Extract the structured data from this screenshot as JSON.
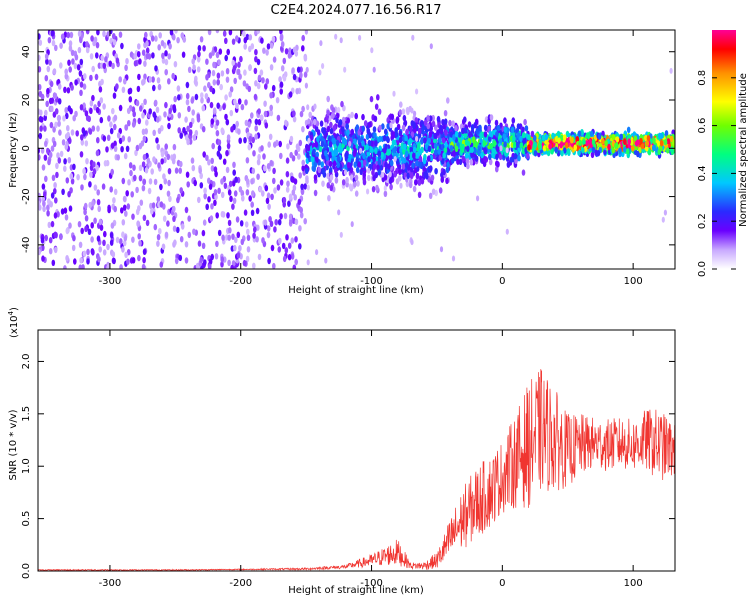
{
  "title": "C2E4.2024.077.16.56.R17",
  "colors": {
    "snr_line": "#f03530",
    "colormap": [
      "#ffffff",
      "#dcc6ff",
      "#9a4cff",
      "#6a00ff",
      "#2222ff",
      "#00bfff",
      "#00ff7f",
      "#7fff00",
      "#ffff00",
      "#ff8000",
      "#ff0000",
      "#ff0090"
    ]
  },
  "chart_data": [
    {
      "type": "heatmap",
      "xlabel": "Height of straight line (km)",
      "ylabel": "Frequency (Hz)",
      "xlim": [
        -355,
        132
      ],
      "ylim": [
        -50,
        49
      ],
      "xticks": [
        -300,
        -200,
        -100,
        0,
        100
      ],
      "xtick_labels": [
        "-300",
        "-200",
        "-100",
        "0",
        "100"
      ],
      "yticks": [
        -40,
        -20,
        0,
        20,
        40
      ],
      "ytick_labels": [
        "-40",
        "-20",
        "0",
        "20",
        "40"
      ],
      "regions": [
        {
          "x": [
            -355,
            -150
          ],
          "center_hz": 0,
          "spread_hz": 49,
          "amplitude": 0.15
        },
        {
          "x": [
            -150,
            -40
          ],
          "center_hz": 0,
          "spread_hz": 15,
          "amplitude": 0.25
        },
        {
          "x": [
            -40,
            20
          ],
          "center_hz": 2,
          "spread_hz": 8,
          "amplitude": 0.35
        },
        {
          "x": [
            20,
            132
          ],
          "center_hz": 2,
          "spread_hz": 4,
          "amplitude": 0.7
        }
      ],
      "colorbar": {
        "label": "Normalized spectral amplitude",
        "ticks": [
          0.0,
          0.2,
          0.4,
          0.6,
          0.8
        ],
        "tick_labels": [
          "0.0",
          "0.2",
          "0.4",
          "0.6",
          "0.8"
        ],
        "range": [
          0,
          1
        ]
      }
    },
    {
      "type": "line",
      "xlabel": "Height of straight line (km)",
      "ylabel": "SNR (10 * v/v)",
      "yscale_label": "(x10",
      "yscale_exp": "4",
      "yscale_close": ")",
      "xlim": [
        -355,
        132
      ],
      "ylim": [
        0,
        2.3
      ],
      "xticks": [
        -300,
        -200,
        -100,
        0,
        100
      ],
      "xtick_labels": [
        "-300",
        "-200",
        "-100",
        "0",
        "100"
      ],
      "yticks": [
        0.0,
        0.5,
        1.0,
        1.5,
        2.0
      ],
      "ytick_labels": [
        "0.0",
        "0.5",
        "1.0",
        "1.5",
        "2.0"
      ],
      "series": [
        {
          "x": [
            -355,
            -300,
            -250,
            -200,
            -150,
            -120,
            -110,
            -100,
            -90,
            -80,
            -70,
            -60,
            -50,
            -40,
            -30,
            -20,
            -10,
            0,
            10,
            20,
            30,
            40,
            50,
            60,
            70,
            80,
            90,
            100,
            110,
            120,
            132
          ],
          "y": [
            0.01,
            0.01,
            0.01,
            0.015,
            0.02,
            0.04,
            0.07,
            0.1,
            0.14,
            0.18,
            0.05,
            0.05,
            0.1,
            0.3,
            0.5,
            0.65,
            0.75,
            0.9,
            1.05,
            1.2,
            1.35,
            1.25,
            1.15,
            1.2,
            1.22,
            1.2,
            1.22,
            1.2,
            1.25,
            1.2,
            1.15
          ],
          "noise": [
            0.005,
            0.005,
            0.005,
            0.005,
            0.01,
            0.02,
            0.04,
            0.06,
            0.09,
            0.13,
            0.03,
            0.04,
            0.08,
            0.2,
            0.3,
            0.35,
            0.35,
            0.35,
            0.45,
            0.6,
            0.6,
            0.5,
            0.35,
            0.3,
            0.25,
            0.25,
            0.25,
            0.25,
            0.3,
            0.35,
            0.25
          ]
        }
      ]
    }
  ]
}
